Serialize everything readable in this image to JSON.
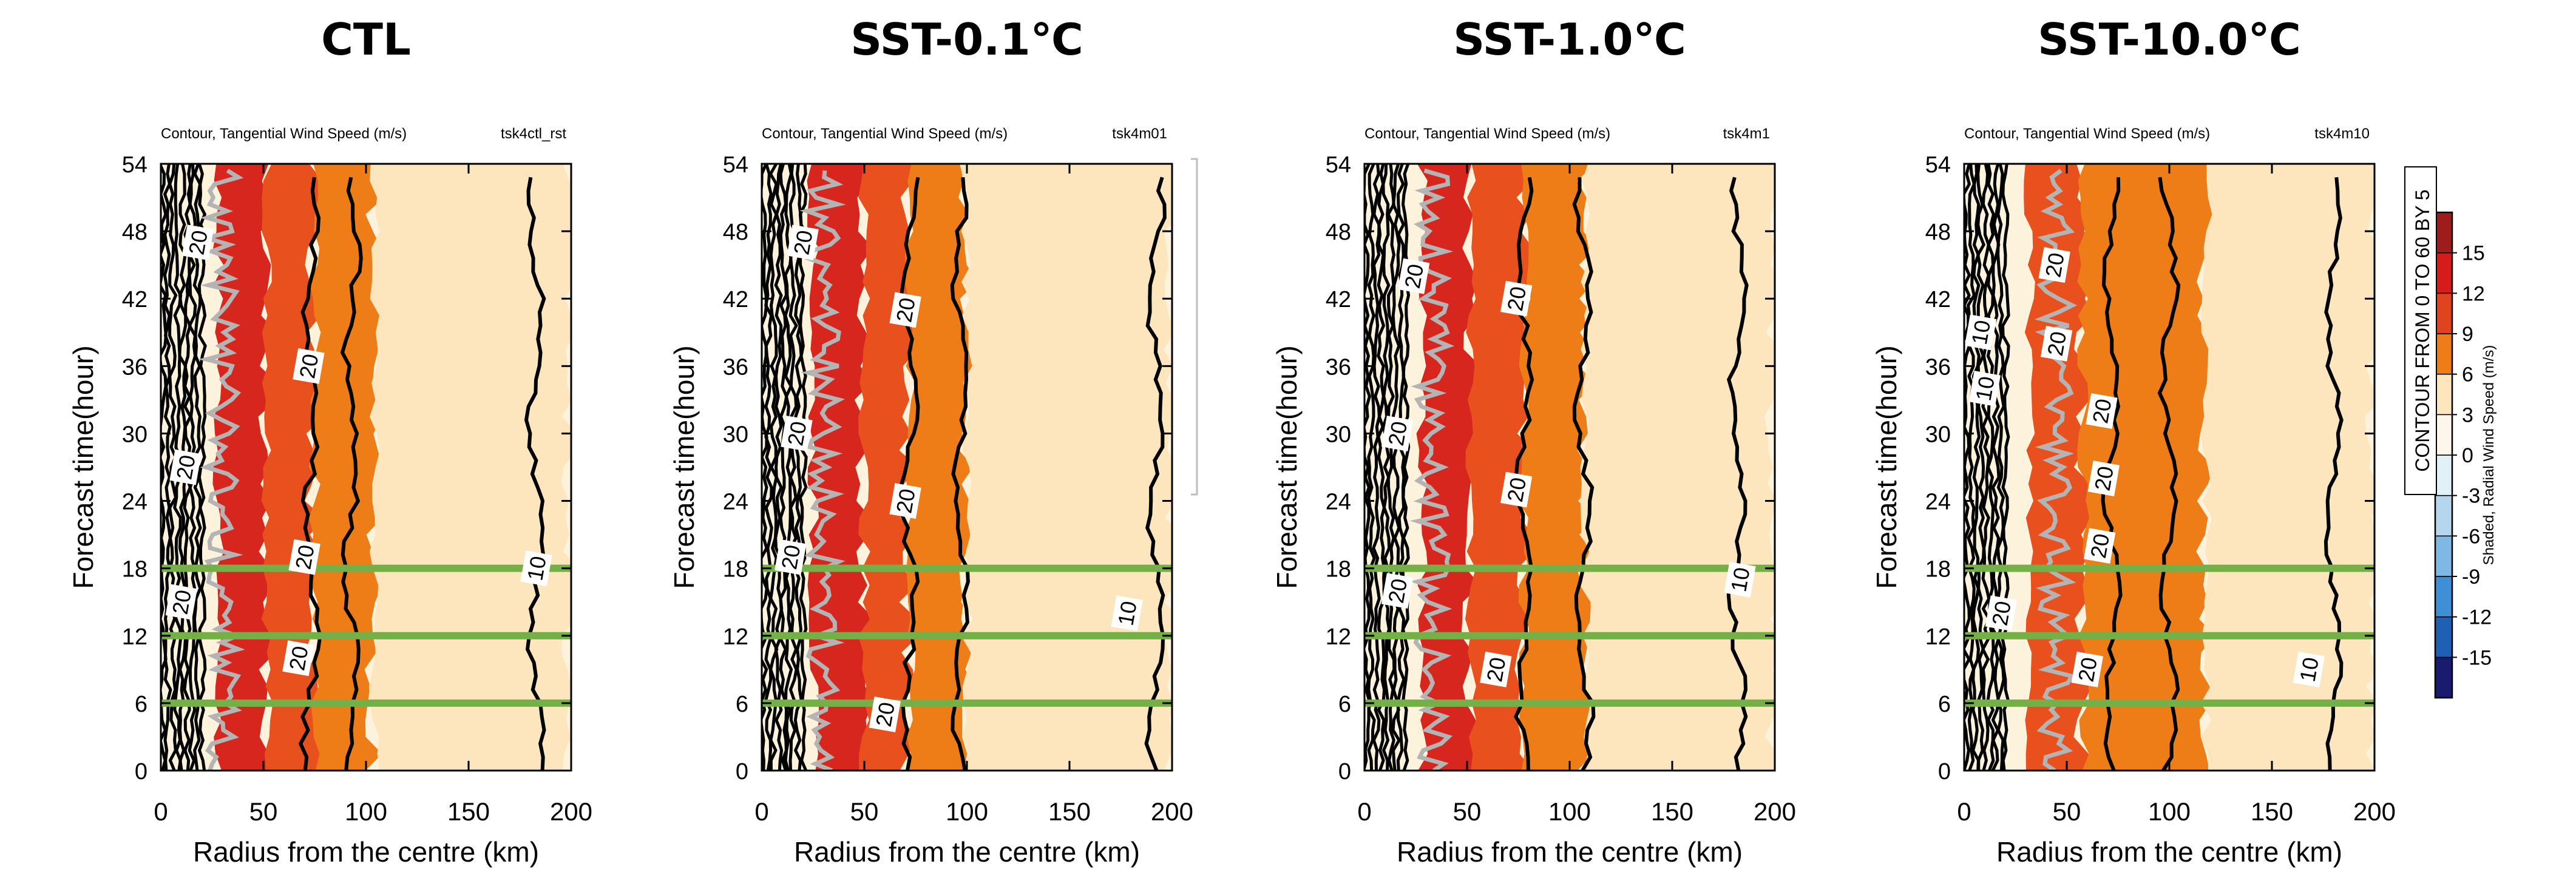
{
  "figure": {
    "panels": [
      {
        "title": "CTL",
        "subtitle_left": "Contour, Tangential Wind Speed (m/s)",
        "subtitle_right": "tsk4ctl_rst"
      },
      {
        "title": "SST-0.1℃",
        "subtitle_left": "Contour, Tangential Wind Speed (m/s)",
        "subtitle_right": "tsk4m01"
      },
      {
        "title": "SST-1.0℃",
        "subtitle_left": "Contour, Tangential Wind Speed (m/s)",
        "subtitle_right": "tsk4m1"
      },
      {
        "title": "SST-10.0℃",
        "subtitle_left": "Contour, Tangential Wind Speed (m/s)",
        "subtitle_right": "tsk4m10"
      }
    ],
    "xlabel": "Radius from the centre (km)",
    "ylabel": "Forecast time(hour)",
    "colorbar": {
      "title": "Shaded, Radial Wind Speed (m/s)",
      "note": "CONTOUR FROM 0 TO 60 BY 5",
      "labels": [
        "15",
        "12",
        "9",
        "6",
        "3",
        "0",
        "-3",
        "-6",
        "-9",
        "-12",
        "-15"
      ],
      "colors": [
        "#1a1a6e",
        "#1f5fb4",
        "#3f8fd6",
        "#7fb8e3",
        "#b5d7ee",
        "#e2f0f8",
        "#fdf6ea",
        "#fde6bd",
        "#ef7d17",
        "#e0431f",
        "#d71a1a",
        "#9e1c1c"
      ]
    },
    "highlight_color": "#74b047",
    "highlight_times": [
      6,
      12,
      18
    ]
  },
  "chart_data": [
    {
      "type": "heatmap",
      "title": "CTL",
      "xlabel": "Radius from the centre (km)",
      "ylabel": "Forecast time(hour)",
      "xlim": [
        0,
        200
      ],
      "ylim": [
        0,
        54
      ],
      "xticks": [
        0,
        50,
        100,
        150,
        200
      ],
      "yticks": [
        0,
        6,
        12,
        18,
        24,
        30,
        36,
        42,
        48,
        54
      ],
      "shading_bands_km": [
        {
          "from": 28,
          "to": 52,
          "value": 12
        },
        {
          "from": 52,
          "to": 75,
          "value": 9
        },
        {
          "from": 75,
          "to": 104,
          "value": 6
        },
        {
          "from": 104,
          "to": 200,
          "value": 3
        }
      ],
      "tangential_wind_contours_km": [
        {
          "value": 20,
          "r": 73
        },
        {
          "value": 15,
          "r": 93
        },
        {
          "value": 10,
          "r": 183
        }
      ],
      "rmw_track_km": 30,
      "contour_labels": [
        {
          "text": "20",
          "r": 18,
          "t": 47
        },
        {
          "text": "20",
          "r": 72,
          "t": 36
        },
        {
          "text": "20",
          "r": 12,
          "t": 27
        },
        {
          "text": "20",
          "r": 70,
          "t": 19
        },
        {
          "text": "20",
          "r": 10,
          "t": 15
        },
        {
          "text": "20",
          "r": 67,
          "t": 10
        },
        {
          "text": "10",
          "r": 183,
          "t": 18
        }
      ]
    },
    {
      "type": "heatmap",
      "title": "SST-0.1℃",
      "xlabel": "Radius from the centre (km)",
      "ylabel": "Forecast time(hour)",
      "xlim": [
        0,
        200
      ],
      "ylim": [
        0,
        54
      ],
      "xticks": [
        0,
        50,
        100,
        150,
        200
      ],
      "yticks": [
        0,
        6,
        12,
        18,
        24,
        30,
        36,
        42,
        48,
        54
      ],
      "shading_bands_km": [
        {
          "from": 25,
          "to": 50,
          "value": 12
        },
        {
          "from": 50,
          "to": 72,
          "value": 9
        },
        {
          "from": 72,
          "to": 100,
          "value": 6
        },
        {
          "from": 100,
          "to": 200,
          "value": 3
        }
      ],
      "tangential_wind_contours_km": [
        {
          "value": 20,
          "r": 72
        },
        {
          "value": 15,
          "r": 97
        },
        {
          "value": 10,
          "r": 192
        }
      ],
      "rmw_track_km": 30,
      "contour_labels": [
        {
          "text": "20",
          "r": 20,
          "t": 47
        },
        {
          "text": "20",
          "r": 70,
          "t": 41
        },
        {
          "text": "20",
          "r": 17,
          "t": 30
        },
        {
          "text": "20",
          "r": 70,
          "t": 24
        },
        {
          "text": "20",
          "r": 14,
          "t": 19
        },
        {
          "text": "20",
          "r": 60,
          "t": 5
        },
        {
          "text": "10",
          "r": 178,
          "t": 14
        }
      ]
    },
    {
      "type": "heatmap",
      "title": "SST-1.0℃",
      "xlabel": "Radius from the centre (km)",
      "ylabel": "Forecast time(hour)",
      "xlim": [
        0,
        200
      ],
      "ylim": [
        0,
        54
      ],
      "xticks": [
        0,
        50,
        100,
        150,
        200
      ],
      "yticks": [
        0,
        6,
        12,
        18,
        24,
        30,
        36,
        42,
        48,
        54
      ],
      "shading_bands_km": [
        {
          "from": 28,
          "to": 52,
          "value": 12
        },
        {
          "from": 52,
          "to": 78,
          "value": 9
        },
        {
          "from": 78,
          "to": 108,
          "value": 6
        },
        {
          "from": 108,
          "to": 200,
          "value": 3
        }
      ],
      "tangential_wind_contours_km": [
        {
          "value": 20,
          "r": 78
        },
        {
          "value": 15,
          "r": 107
        },
        {
          "value": 10,
          "r": 182
        }
      ],
      "rmw_track_km": 33,
      "contour_labels": [
        {
          "text": "20",
          "r": 24,
          "t": 44
        },
        {
          "text": "20",
          "r": 74,
          "t": 42
        },
        {
          "text": "20",
          "r": 16,
          "t": 30
        },
        {
          "text": "20",
          "r": 74,
          "t": 25
        },
        {
          "text": "20",
          "r": 16,
          "t": 16
        },
        {
          "text": "20",
          "r": 64,
          "t": 9
        },
        {
          "text": "10",
          "r": 183,
          "t": 17
        }
      ]
    },
    {
      "type": "heatmap",
      "title": "SST-10.0℃",
      "xlabel": "Radius from the centre (km)",
      "ylabel": "Forecast time(hour)",
      "xlim": [
        0,
        200
      ],
      "ylim": [
        0,
        54
      ],
      "xticks": [
        0,
        50,
        100,
        150,
        200
      ],
      "yticks": [
        0,
        6,
        12,
        18,
        24,
        30,
        36,
        42,
        48,
        54
      ],
      "shading_bands_km": [
        {
          "from": 32,
          "to": 58,
          "value": 9
        },
        {
          "from": 58,
          "to": 118,
          "value": 6
        },
        {
          "from": 118,
          "to": 200,
          "value": 3
        }
      ],
      "tangential_wind_contours_km": [
        {
          "value": 20,
          "r": 72
        },
        {
          "value": 15,
          "r": 100
        },
        {
          "value": 10,
          "r": 180
        }
      ],
      "rmw_track_km": 45,
      "contour_labels": [
        {
          "text": "10",
          "r": 8,
          "t": 39
        },
        {
          "text": "10",
          "r": 10,
          "t": 34
        },
        {
          "text": "20",
          "r": 44,
          "t": 45
        },
        {
          "text": "20",
          "r": 45,
          "t": 38
        },
        {
          "text": "20",
          "r": 67,
          "t": 32
        },
        {
          "text": "20",
          "r": 68,
          "t": 26
        },
        {
          "text": "20",
          "r": 66,
          "t": 20
        },
        {
          "text": "20",
          "r": 60,
          "t": 9
        },
        {
          "text": "20",
          "r": 18,
          "t": 14
        },
        {
          "text": "10",
          "r": 168,
          "t": 9
        }
      ]
    }
  ]
}
